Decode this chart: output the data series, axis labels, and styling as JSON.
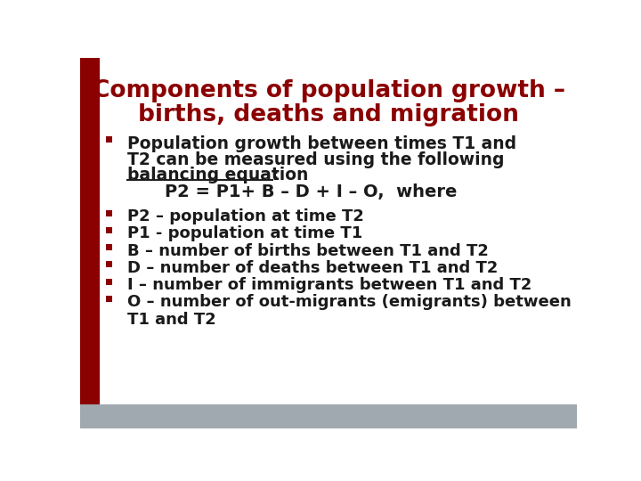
{
  "title_line1": "Components of population growth –",
  "title_line2": "births, deaths and migration",
  "title_color": "#8B0000",
  "background_color": "#FFFFFF",
  "left_bar_color": "#8B0000",
  "bottom_bar_color": "#A0A8B0",
  "bullet_color": "#8B0000",
  "text_color": "#1a1a1a",
  "bullet1_line1": "Population growth between times T1 and",
  "bullet1_line2": "T2 can be measured using the following",
  "bullet1_line3_plain": "balancing equation",
  "bullet1_line3_colon": ":",
  "equation": "    P2 = P1+ B – D + I – O,  where",
  "bullets": [
    "P2 – population at time T2",
    "P1 - population at time T1",
    "B – number of births between T1 and T2",
    "D – number of deaths between T1 and T2",
    "I – number of immigrants between T1 and T2",
    "O – number of out-migrants (emigrants) between",
    "T1 and T2"
  ]
}
